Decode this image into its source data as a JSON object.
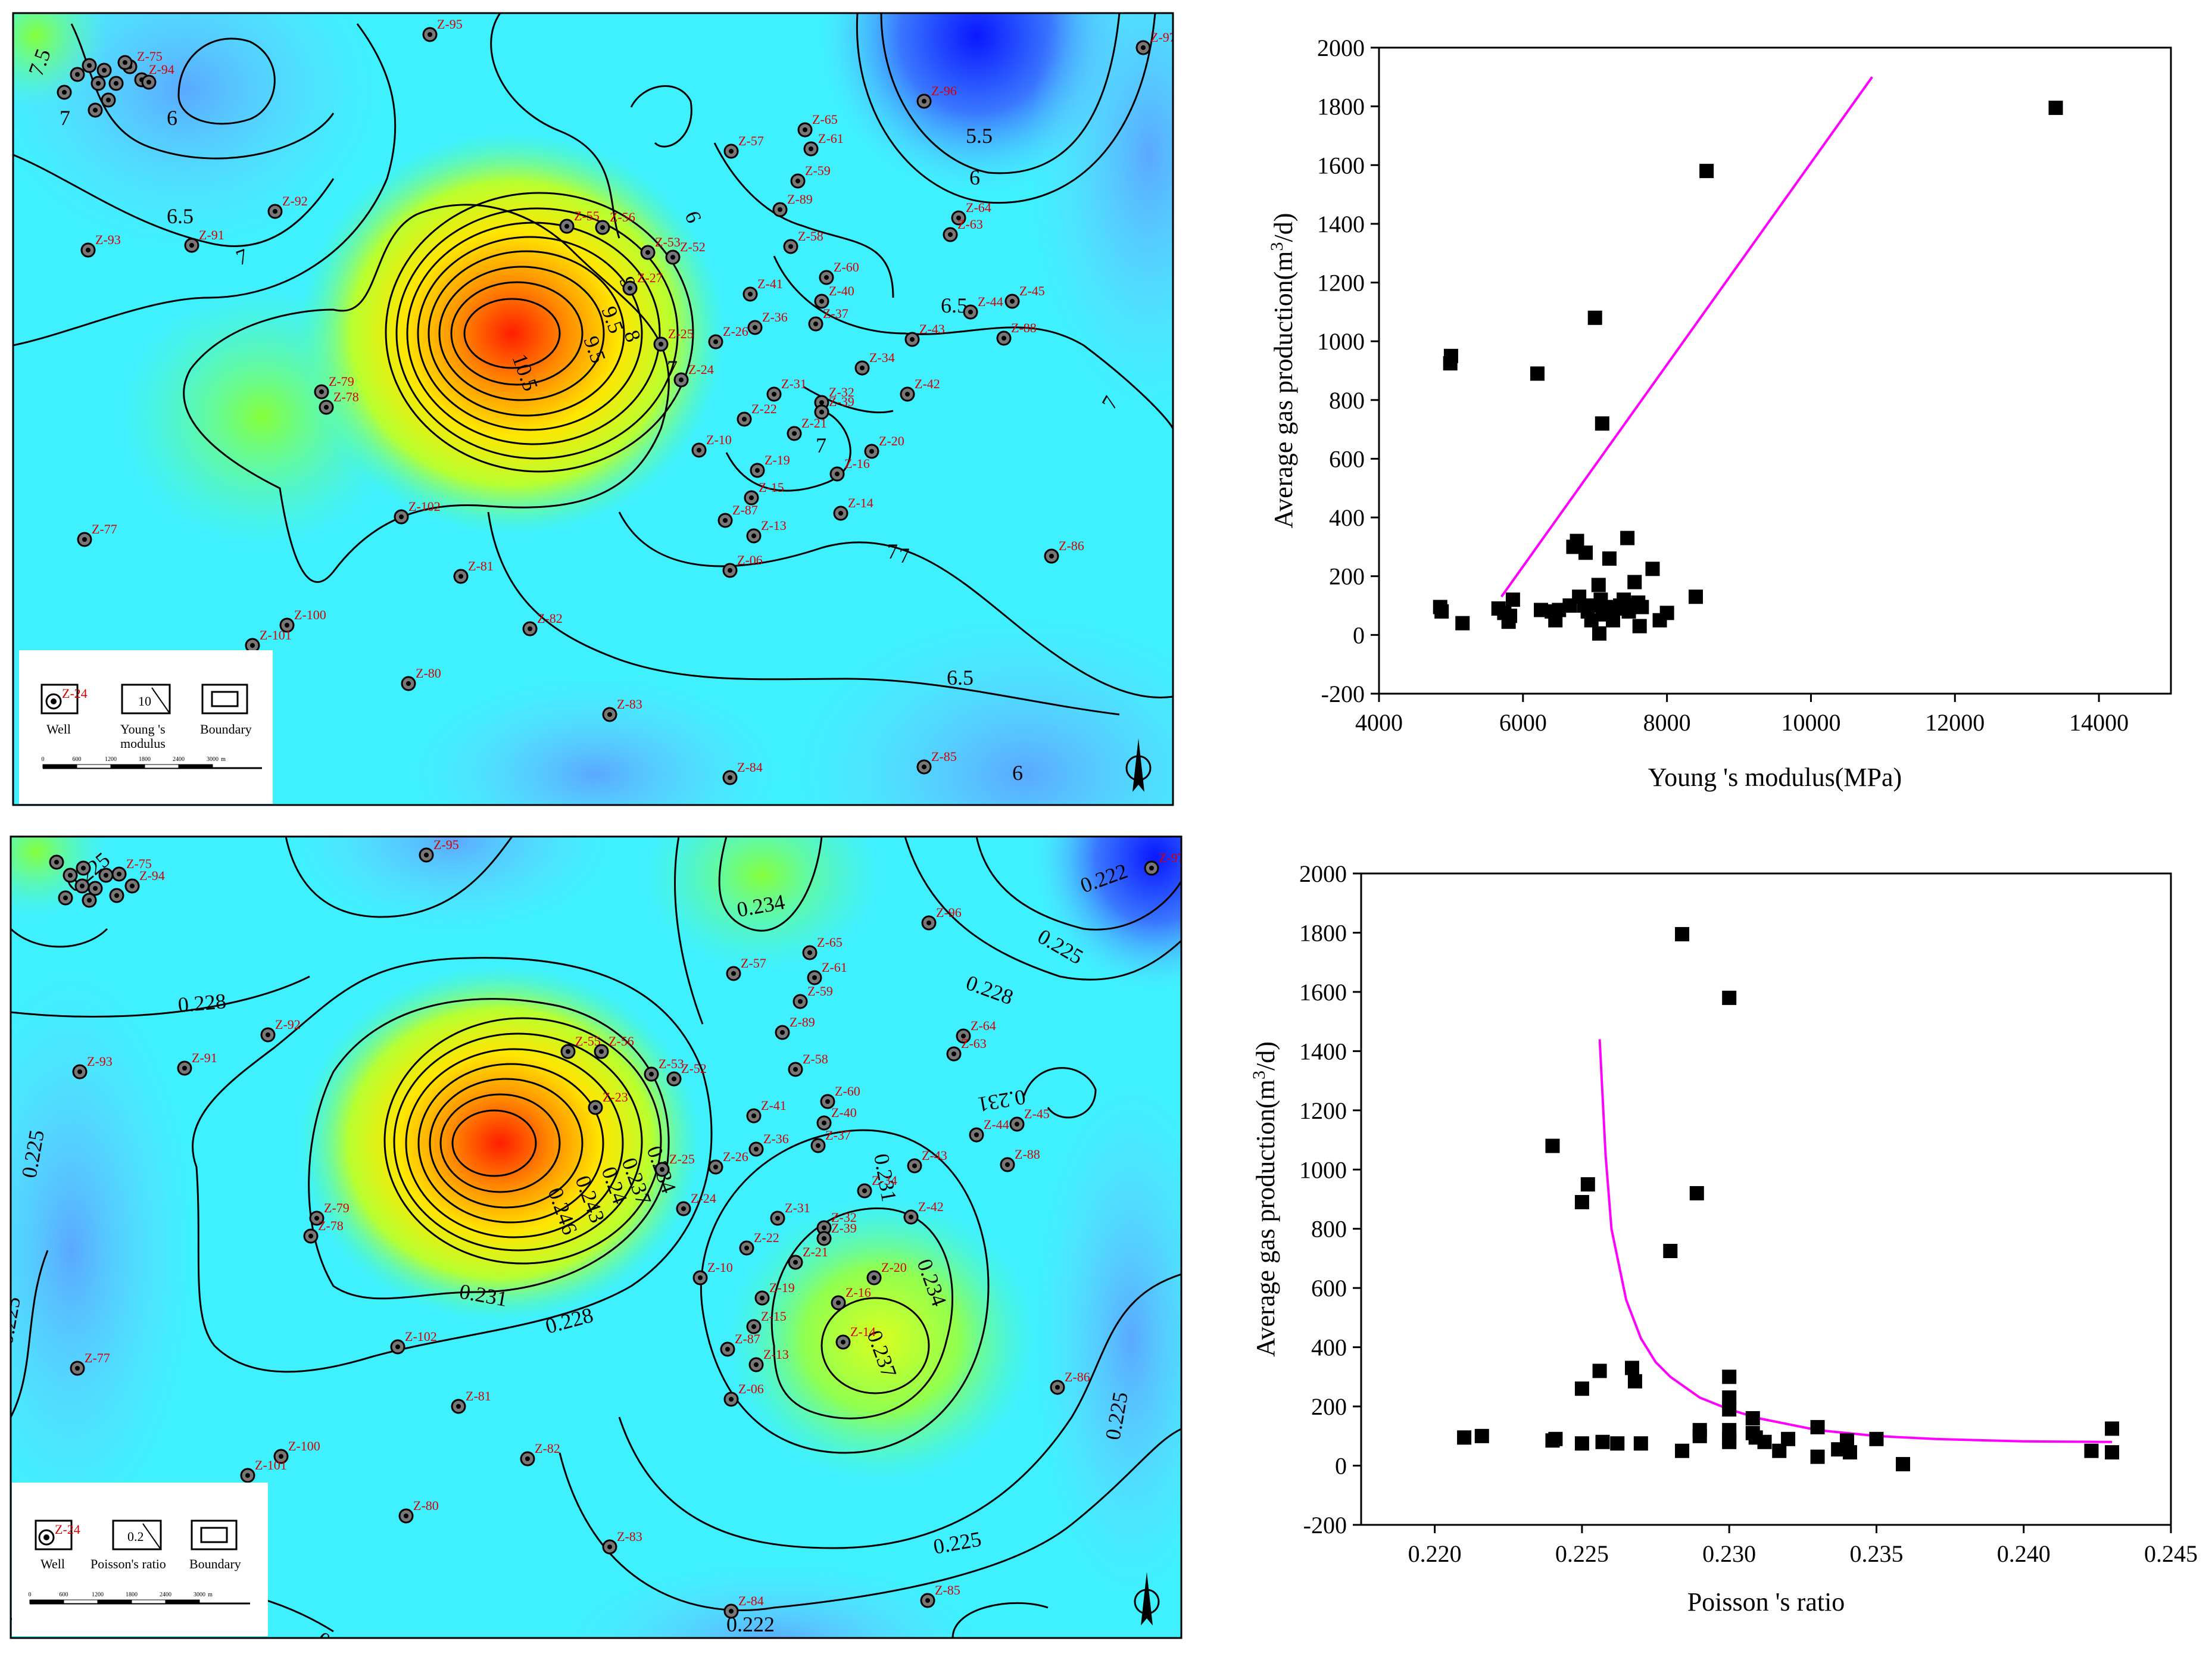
{
  "maps": {
    "young": {
      "contour_labels": [
        "7.5",
        "7",
        "6",
        "6.5",
        "7",
        "5.5",
        "6",
        "6.5",
        "7",
        "7",
        "7",
        "7",
        "9",
        "9.5",
        "10.5",
        "9.5",
        "8",
        "7",
        "6",
        "6.5",
        "6",
        "7"
      ],
      "wells": [
        "Z-75",
        "Z-94",
        "Z-95",
        "Z-96",
        "Z-97",
        "Z-92",
        "Z-93",
        "Z-91",
        "Z-57",
        "Z-61",
        "Z-65",
        "Z-59",
        "Z-89",
        "Z-58",
        "Z-60",
        "Z-40",
        "Z-37",
        "Z-41",
        "Z-36",
        "Z-26",
        "Z-25",
        "Z-24",
        "Z-27",
        "Z-52",
        "Z-53",
        "Z-55",
        "Z-56",
        "Z-64",
        "Z-63",
        "Z-44",
        "Z-45",
        "Z-88",
        "Z-43",
        "Z-34",
        "Z-42",
        "Z-31",
        "Z-32",
        "Z-39",
        "Z-22",
        "Z-21",
        "Z-10",
        "Z-20",
        "Z-16",
        "Z-19",
        "Z-15",
        "Z-87",
        "Z-13",
        "Z-14",
        "Z-06",
        "Z-79",
        "Z-78",
        "Z-77",
        "Z-102",
        "Z-81",
        "Z-82",
        "Z-100",
        "Z-101",
        "Z-80",
        "Z-83",
        "Z-84",
        "Z-85",
        "Z-86"
      ],
      "legend": {
        "well_sample": "Z-24",
        "well": "Well",
        "value_sample": "10",
        "value": "Young 's\nmodulus",
        "boundary": "Boundary"
      },
      "scale": [
        "0",
        "600",
        "1200",
        "1800",
        "2400",
        "3000",
        "m"
      ]
    },
    "poisson": {
      "contour_labels": [
        "0.225",
        "0.228",
        "0.225",
        "0.234",
        "0.225",
        "0.222",
        "0.228",
        "0.231",
        "0.246",
        "0.243",
        "0.24",
        "0.237",
        "0.234",
        "0.231",
        "0.228",
        "0.234",
        "0.237",
        "0.231",
        "0.225",
        "0.228",
        "0.222",
        "0.225",
        "0.222",
        "0.225"
      ],
      "wells": [
        "Z-75",
        "Z-94",
        "Z-95",
        "Z-97",
        "Z-96",
        "Z-92",
        "Z-93",
        "Z-91",
        "Z-57",
        "Z-61",
        "Z-65",
        "Z-59",
        "Z-89",
        "Z-58",
        "Z-60",
        "Z-40",
        "Z-37",
        "Z-41",
        "Z-36",
        "Z-26",
        "Z-25",
        "Z-24",
        "Z-23",
        "Z-52",
        "Z-53",
        "Z-55",
        "Z-56",
        "Z-64",
        "Z-63",
        "Z-44",
        "Z-45",
        "Z-88",
        "Z-43",
        "Z-34",
        "Z-42",
        "Z-31",
        "Z-32",
        "Z-39",
        "Z-22",
        "Z-21",
        "Z-10",
        "Z-20",
        "Z-16",
        "Z-19",
        "Z-15",
        "Z-87",
        "Z-13",
        "Z-14",
        "Z-06",
        "Z-79",
        "Z-78",
        "Z-77",
        "Z-102",
        "Z-81",
        "Z-82",
        "Z-100",
        "Z-101",
        "Z-80",
        "Z-83",
        "Z-84",
        "Z-85",
        "Z-86"
      ],
      "legend": {
        "well_sample": "Z-24",
        "well": "Well",
        "value_sample": "0.2",
        "value": "Poisson's ratio",
        "boundary": "Boundary"
      },
      "scale": [
        "0",
        "600",
        "1200",
        "1800",
        "2400",
        "3000",
        "m"
      ]
    },
    "colors": {
      "high": "#ff2a00",
      "mid": "#f2ff00",
      "green": "#7cff5a",
      "low": "#1a3bff",
      "base": "#3ff0ff"
    }
  },
  "chart_data": [
    {
      "type": "scatter",
      "title": "",
      "xlabel": "Young 's modulus(MPa)",
      "ylabel_main": "Average gas production(m",
      "ylabel_sup": "3",
      "ylabel_tail": "/d)",
      "xlim": [
        4000,
        15000
      ],
      "ylim": [
        -200,
        2000
      ],
      "xticks": [
        "4000",
        "6000",
        "8000",
        "10000",
        "12000",
        "14000"
      ],
      "yticks": [
        "-200",
        "0",
        "200",
        "400",
        "600",
        "800",
        "1000",
        "1200",
        "1400",
        "1600",
        "1800",
        "2000"
      ],
      "xtick_values": [
        4000,
        6000,
        8000,
        10000,
        12000,
        14000
      ],
      "ytick_values": [
        -200,
        0,
        200,
        400,
        600,
        800,
        1000,
        1200,
        1400,
        1600,
        1800,
        2000
      ],
      "points": [
        [
          4850,
          95
        ],
        [
          4870,
          80
        ],
        [
          5160,
          40
        ],
        [
          5000,
          950
        ],
        [
          4990,
          925
        ],
        [
          5660,
          90
        ],
        [
          5740,
          75
        ],
        [
          5800,
          45
        ],
        [
          5820,
          65
        ],
        [
          5860,
          120
        ],
        [
          6200,
          890
        ],
        [
          6250,
          85
        ],
        [
          6400,
          80
        ],
        [
          6450,
          50
        ],
        [
          6500,
          85
        ],
        [
          6650,
          100
        ],
        [
          6700,
          300
        ],
        [
          6750,
          320
        ],
        [
          6780,
          130
        ],
        [
          6850,
          100
        ],
        [
          6870,
          280
        ],
        [
          6900,
          80
        ],
        [
          6950,
          50
        ],
        [
          7000,
          1080
        ],
        [
          7020,
          100
        ],
        [
          7050,
          170
        ],
        [
          7060,
          5
        ],
        [
          7080,
          120
        ],
        [
          7100,
          720
        ],
        [
          7110,
          70
        ],
        [
          7150,
          95
        ],
        [
          7200,
          260
        ],
        [
          7220,
          80
        ],
        [
          7250,
          50
        ],
        [
          7300,
          90
        ],
        [
          7350,
          100
        ],
        [
          7400,
          120
        ],
        [
          7450,
          330
        ],
        [
          7470,
          80
        ],
        [
          7500,
          100
        ],
        [
          7550,
          180
        ],
        [
          7600,
          110
        ],
        [
          7620,
          30
        ],
        [
          7650,
          95
        ],
        [
          7800,
          225
        ],
        [
          7900,
          50
        ],
        [
          8000,
          75
        ],
        [
          8400,
          130
        ],
        [
          8550,
          1580
        ],
        [
          13400,
          1795
        ]
      ],
      "fit_line": [
        [
          5700,
          130
        ],
        [
          10850,
          1900
        ]
      ],
      "fit_color": "#ff00ff"
    },
    {
      "type": "scatter",
      "title": "",
      "xlabel": "Poisson 's ratio",
      "ylabel_main": "Average gas production(m",
      "ylabel_sup": "3",
      "ylabel_tail": "/d)",
      "xlim": [
        0.2175,
        0.245
      ],
      "ylim": [
        -200,
        2000
      ],
      "xticks": [
        "0.220",
        "0.225",
        "0.230",
        "0.235",
        "0.240",
        "0.245"
      ],
      "yticks": [
        "-200",
        "0",
        "200",
        "400",
        "600",
        "800",
        "1000",
        "1200",
        "1400",
        "1600",
        "1800",
        "2000"
      ],
      "xtick_values": [
        0.22,
        0.225,
        0.23,
        0.235,
        0.24,
        0.245
      ],
      "ytick_values": [
        -200,
        0,
        200,
        400,
        600,
        800,
        1000,
        1200,
        1400,
        1600,
        1800,
        2000
      ],
      "points": [
        [
          0.221,
          95
        ],
        [
          0.2216,
          100
        ],
        [
          0.224,
          1080
        ],
        [
          0.224,
          85
        ],
        [
          0.2241,
          90
        ],
        [
          0.225,
          890
        ],
        [
          0.225,
          260
        ],
        [
          0.225,
          75
        ],
        [
          0.2252,
          950
        ],
        [
          0.2256,
          320
        ],
        [
          0.2257,
          80
        ],
        [
          0.2262,
          75
        ],
        [
          0.2267,
          330
        ],
        [
          0.2268,
          285
        ],
        [
          0.227,
          75
        ],
        [
          0.228,
          725
        ],
        [
          0.2284,
          1795
        ],
        [
          0.2284,
          50
        ],
        [
          0.2289,
          920
        ],
        [
          0.229,
          100
        ],
        [
          0.229,
          120
        ],
        [
          0.23,
          1580
        ],
        [
          0.23,
          300
        ],
        [
          0.23,
          230
        ],
        [
          0.23,
          190
        ],
        [
          0.23,
          120
        ],
        [
          0.23,
          90
        ],
        [
          0.23,
          80
        ],
        [
          0.2308,
          160
        ],
        [
          0.2308,
          110
        ],
        [
          0.2309,
          95
        ],
        [
          0.2312,
          80
        ],
        [
          0.2317,
          50
        ],
        [
          0.232,
          90
        ],
        [
          0.233,
          130
        ],
        [
          0.233,
          30
        ],
        [
          0.2337,
          55
        ],
        [
          0.234,
          85
        ],
        [
          0.2341,
          45
        ],
        [
          0.235,
          90
        ],
        [
          0.2359,
          5
        ],
        [
          0.2423,
          50
        ],
        [
          0.243,
          125
        ],
        [
          0.243,
          45
        ]
      ],
      "fit_curve_x": [
        0.2256,
        0.2258,
        0.226,
        0.2265,
        0.227,
        0.2275,
        0.228,
        0.229,
        0.23,
        0.231,
        0.232,
        0.233,
        0.235,
        0.237,
        0.24,
        0.243
      ],
      "fit_curve_y": [
        1440,
        1050,
        800,
        560,
        430,
        350,
        300,
        230,
        190,
        160,
        140,
        120,
        100,
        90,
        82,
        80
      ],
      "fit_color": "#ff00ff"
    }
  ]
}
